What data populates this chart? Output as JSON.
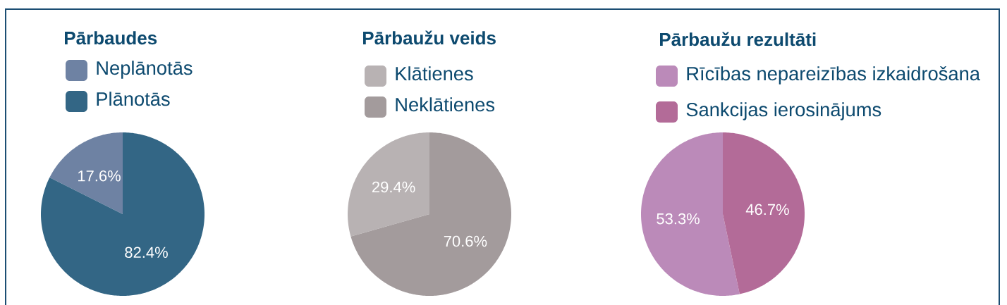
{
  "chart_data": [
    {
      "type": "pie",
      "title": "Pārbaudes",
      "categories": [
        "Neplānotās",
        "Plānotās"
      ],
      "values": [
        17.6,
        82.4
      ],
      "colors": [
        "#6e82a3",
        "#336685"
      ],
      "value_labels": [
        "17.6%",
        "82.4%"
      ],
      "legend": "top"
    },
    {
      "type": "pie",
      "title": "Pārbaužu veids",
      "categories": [
        "Klātienes",
        "Neklātienes"
      ],
      "values": [
        29.4,
        70.6
      ],
      "colors": [
        "#b8b2b3",
        "#a39b9c"
      ],
      "value_labels": [
        "29.4%",
        "70.6%"
      ],
      "legend": "top"
    },
    {
      "type": "pie",
      "title": "Pārbaužu rezultāti",
      "categories": [
        "Rīcības nepareizības izkaidrošana",
        "Sankcijas ierosinājums"
      ],
      "values": [
        53.3,
        46.7
      ],
      "colors": [
        "#bb8ab9",
        "#b36b98"
      ],
      "value_labels": [
        "53.3%",
        "46.7%"
      ],
      "legend": "top"
    }
  ]
}
